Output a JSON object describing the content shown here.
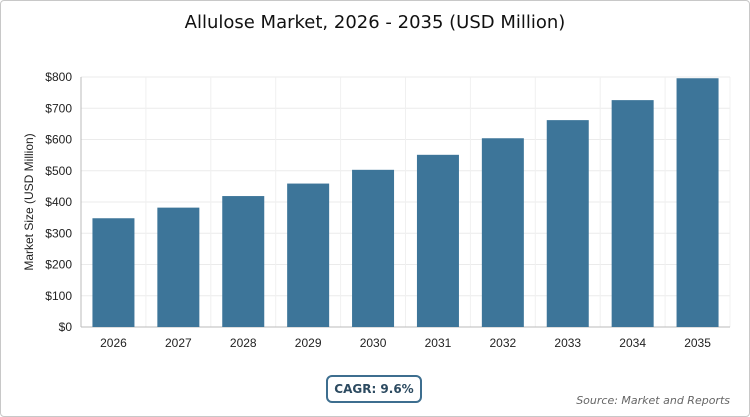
{
  "chart_data": {
    "type": "bar",
    "title": "Allulose Market, 2026 - 2035 (USD Million)",
    "xlabel": "",
    "ylabel": "Market Size (USD Million)",
    "categories": [
      "2026",
      "2027",
      "2028",
      "2029",
      "2030",
      "2031",
      "2032",
      "2033",
      "2034",
      "2035"
    ],
    "values": [
      348,
      382,
      419,
      459,
      503,
      551,
      604,
      662,
      726,
      796
    ],
    "ylim": [
      0,
      800
    ],
    "yticks": [
      0,
      100,
      200,
      300,
      400,
      500,
      600,
      700,
      800
    ],
    "ytick_labels": [
      "$0",
      "$100",
      "$200",
      "$300",
      "$400",
      "$500",
      "$600",
      "$700",
      "$800"
    ],
    "grid": true,
    "bar_color": "#3d7599"
  },
  "cagr_label": "CAGR: 9.6%",
  "source": "Source: Market and Reports"
}
